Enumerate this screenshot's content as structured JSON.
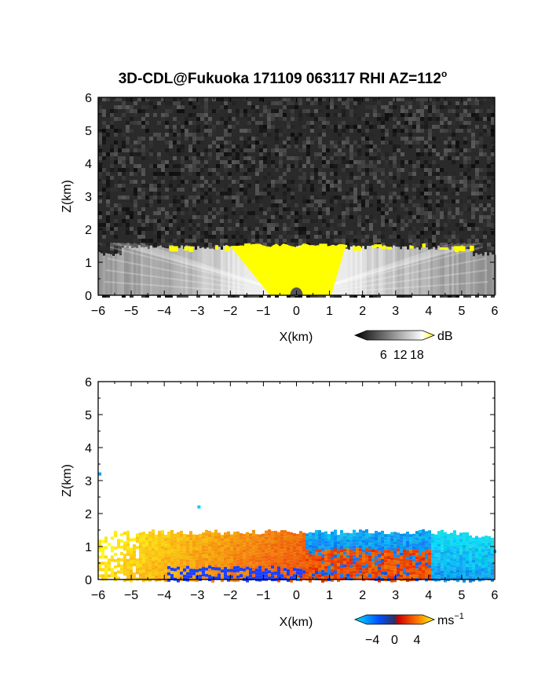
{
  "figure": {
    "title": "3D-CDL@Fukuoka 171109 063117 RHI AZ=112",
    "title_superscript": "o"
  },
  "chart_data": [
    {
      "type": "heatmap",
      "quantity": "SNR",
      "xlabel": "X(km)",
      "ylabel": "Z(km)",
      "xlim": [
        -6,
        6
      ],
      "ylim": [
        0,
        6
      ],
      "xticks": [
        "-6",
        "-5",
        "-4",
        "-3",
        "-2",
        "-1",
        "0",
        "1",
        "2",
        "3",
        "4",
        "5",
        "6"
      ],
      "yticks": [
        "0",
        "1",
        "2",
        "3",
        "4",
        "5",
        "6"
      ],
      "colorbar": {
        "unit": "dB",
        "ticks": [
          "6",
          "12",
          "18"
        ],
        "tick_values": [
          6,
          12,
          18
        ],
        "range": [
          0,
          20
        ],
        "colors": [
          "#000000",
          "#ffffff",
          "#ffff00"
        ]
      },
      "features": {
        "noise_background": "#2a2a2a",
        "boundary_layer_top_km": 1.5,
        "saturated_zone_x_km": [
          -2,
          1.5
        ],
        "saturated_color": "#ffff00"
      }
    },
    {
      "type": "heatmap",
      "quantity": "Doppler velocity",
      "xlabel": "X(km)",
      "ylabel": "Z(km)",
      "xlim": [
        -6,
        6
      ],
      "ylim": [
        0,
        6
      ],
      "xticks": [
        "-6",
        "-5",
        "-4",
        "-3",
        "-2",
        "-1",
        "0",
        "1",
        "2",
        "3",
        "4",
        "5",
        "6"
      ],
      "yticks": [
        "0",
        "1",
        "2",
        "3",
        "4",
        "5",
        "6"
      ],
      "colorbar": {
        "unit": "ms",
        "unit_superscript": "−1",
        "ticks": [
          "−4",
          "0",
          "4"
        ],
        "tick_values": [
          -4,
          0,
          4
        ],
        "range": [
          -5,
          5
        ],
        "colors": [
          "#00e0ff",
          "#0050ff",
          "#e00000",
          "#ffff00"
        ]
      },
      "features": {
        "echo_top_km": 1.5,
        "velocity_sign_change_x_km": 0.2,
        "negative_side_color": "#0050ff",
        "positive_side_color": "#ff4000"
      }
    }
  ]
}
